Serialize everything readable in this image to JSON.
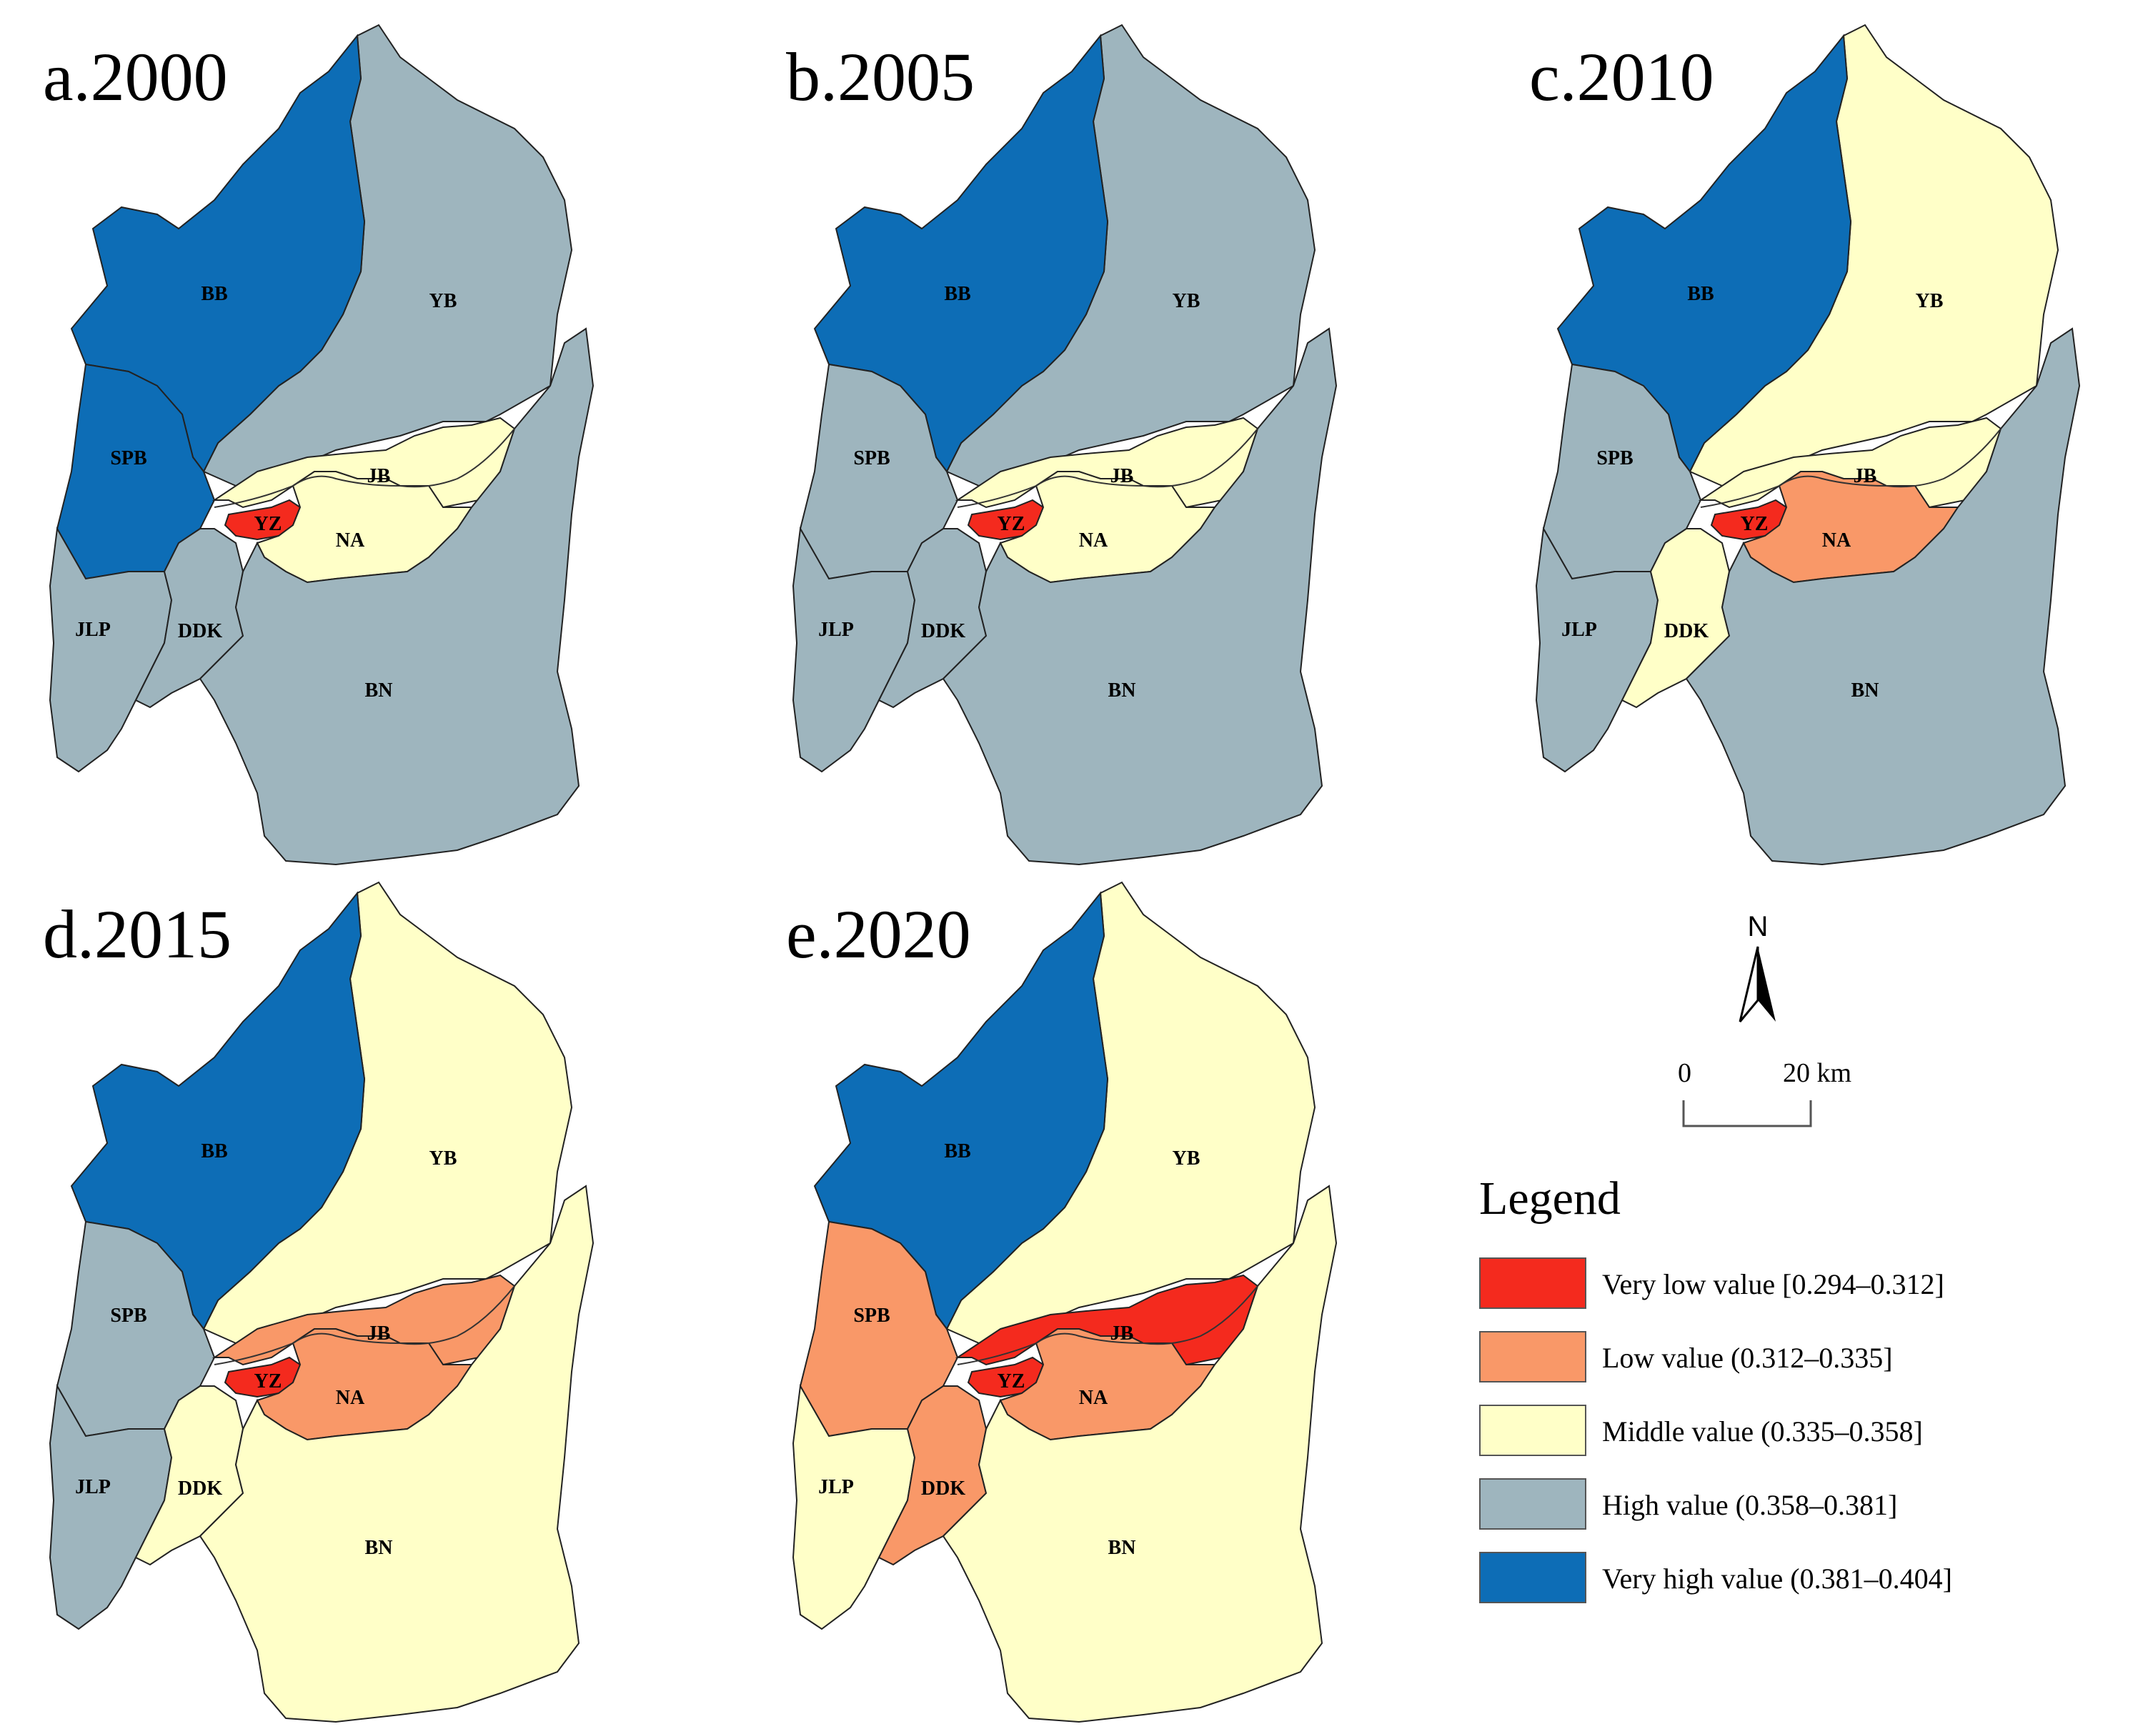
{
  "colors": {
    "very_low": "#F42A1E",
    "low": "#F99868",
    "middle": "#FFFFC8",
    "high": "#9EB5BE",
    "very_high": "#0D6DB6",
    "border": "#222222"
  },
  "district_labels": [
    "BB",
    "YB",
    "SPB",
    "JB",
    "YZ",
    "NA",
    "JLP",
    "DDK",
    "BN"
  ],
  "panels": [
    {
      "title": "a.2000",
      "classes": {
        "BB": "very_high",
        "YB": "high",
        "SPB": "very_high",
        "JB": "middle",
        "YZ": "very_low",
        "NA": "middle",
        "JLP": "high",
        "DDK": "high",
        "BN": "high"
      }
    },
    {
      "title": "b.2005",
      "classes": {
        "BB": "very_high",
        "YB": "high",
        "SPB": "high",
        "JB": "middle",
        "YZ": "very_low",
        "NA": "middle",
        "JLP": "high",
        "DDK": "high",
        "BN": "high"
      }
    },
    {
      "title": "c.2010",
      "classes": {
        "BB": "very_high",
        "YB": "middle",
        "SPB": "high",
        "JB": "middle",
        "YZ": "very_low",
        "NA": "low",
        "JLP": "high",
        "DDK": "middle",
        "BN": "high"
      }
    },
    {
      "title": "d.2015",
      "classes": {
        "BB": "very_high",
        "YB": "middle",
        "SPB": "high",
        "JB": "low",
        "YZ": "very_low",
        "NA": "low",
        "JLP": "high",
        "DDK": "middle",
        "BN": "middle"
      }
    },
    {
      "title": "e.2020",
      "classes": {
        "BB": "very_high",
        "YB": "middle",
        "SPB": "low",
        "JB": "very_low",
        "YZ": "very_low",
        "NA": "low",
        "JLP": "middle",
        "DDK": "low",
        "BN": "middle"
      }
    }
  ],
  "north_arrow": {
    "label": "N"
  },
  "scale_bar": {
    "start": "0",
    "end": "20 km"
  },
  "legend": {
    "title": "Legend",
    "items": [
      {
        "label": "Very low value [0.294–0.312]",
        "color_key": "very_low"
      },
      {
        "label": "Low value (0.312–0.335]",
        "color_key": "low"
      },
      {
        "label": "Middle value (0.335–0.358]",
        "color_key": "middle"
      },
      {
        "label": "High value (0.358–0.381]",
        "color_key": "high"
      },
      {
        "label": "Very high value (0.381–0.404]",
        "color_key": "very_high"
      }
    ]
  }
}
